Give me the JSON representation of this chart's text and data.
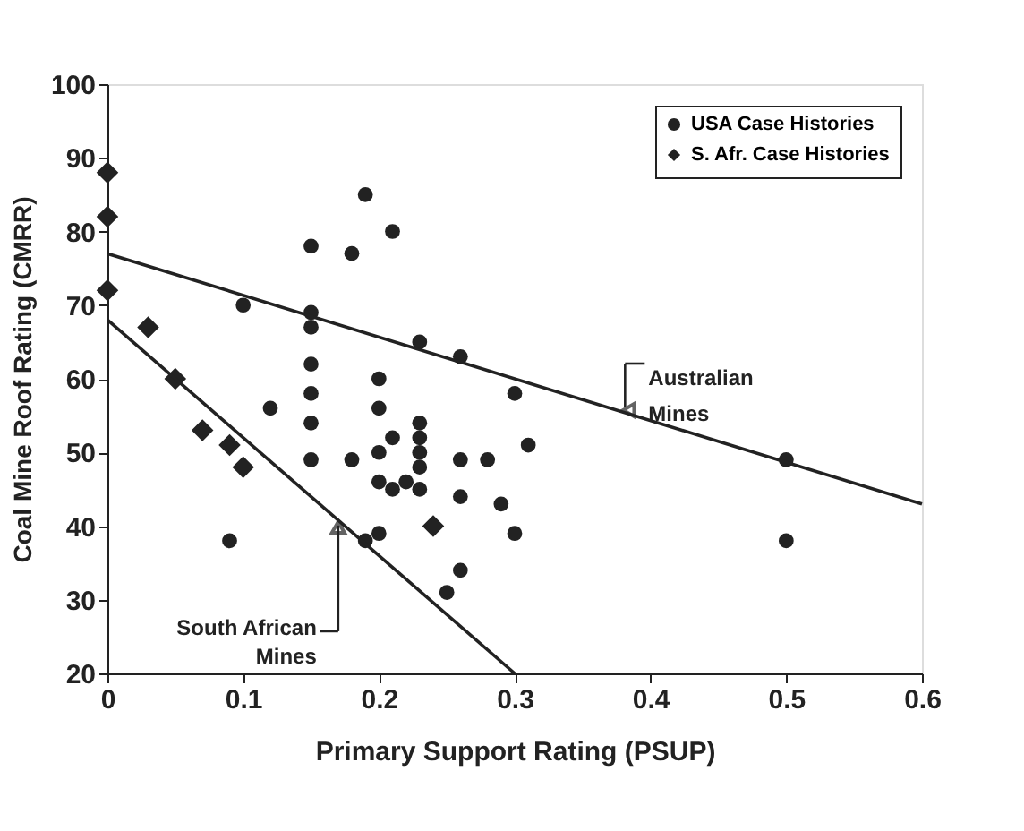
{
  "chart_data": {
    "type": "scatter",
    "xlabel": "Primary Support Rating (PSUP)",
    "ylabel": "Coal Mine Roof Rating (CMRR)",
    "xlim": [
      0,
      0.6
    ],
    "ylim": [
      20,
      100
    ],
    "xticks": [
      0,
      0.1,
      0.2,
      0.3,
      0.4,
      0.5,
      0.6
    ],
    "yticks": [
      20,
      30,
      40,
      50,
      60,
      70,
      80,
      90,
      100
    ],
    "grid": false,
    "legend": "top right",
    "series": [
      {
        "name": "USA Case Histories",
        "color": "#222222",
        "marker": "circle",
        "x": [
          0.19,
          0.15,
          0.18,
          0.21,
          0.1,
          0.15,
          0.15,
          0.15,
          0.15,
          0.15,
          0.15,
          0.12,
          0.18,
          0.2,
          0.2,
          0.21,
          0.2,
          0.23,
          0.26,
          0.3,
          0.23,
          0.23,
          0.23,
          0.23,
          0.26,
          0.28,
          0.31,
          0.2,
          0.21,
          0.22,
          0.23,
          0.26,
          0.29,
          0.3,
          0.2,
          0.19,
          0.26,
          0.25,
          0.09,
          0.5,
          0.5
        ],
        "values": [
          85,
          78,
          77,
          80,
          70,
          69,
          67,
          62,
          58,
          54,
          49,
          56,
          49,
          60,
          56,
          52,
          50,
          65,
          63,
          58,
          54,
          52,
          50,
          48,
          49,
          49,
          51,
          46,
          45,
          46,
          45,
          44,
          43,
          39,
          39,
          38,
          34,
          31,
          38,
          49,
          38
        ]
      },
      {
        "name": "S. Afr. Case Histories",
        "color": "#222222",
        "marker": "diamond",
        "x": [
          0,
          0,
          0,
          0.03,
          0.05,
          0.07,
          0.09,
          0.1,
          0.24
        ],
        "values": [
          88,
          82,
          72,
          67,
          60,
          53,
          51,
          48,
          40
        ]
      },
      {
        "type": "line",
        "color": "#222222",
        "x": [
          0,
          0.6
        ],
        "values": [
          77,
          43
        ]
      },
      {
        "type": "line",
        "color": "#222222",
        "x": [
          0,
          0.3
        ],
        "values": [
          68,
          20
        ]
      }
    ],
    "annotations": [
      {
        "text": "Australian\nMines",
        "x": 0.38,
        "y": 55.5
      },
      {
        "text": "South African\nMines",
        "x": 0.17,
        "y": 40.8
      }
    ]
  }
}
